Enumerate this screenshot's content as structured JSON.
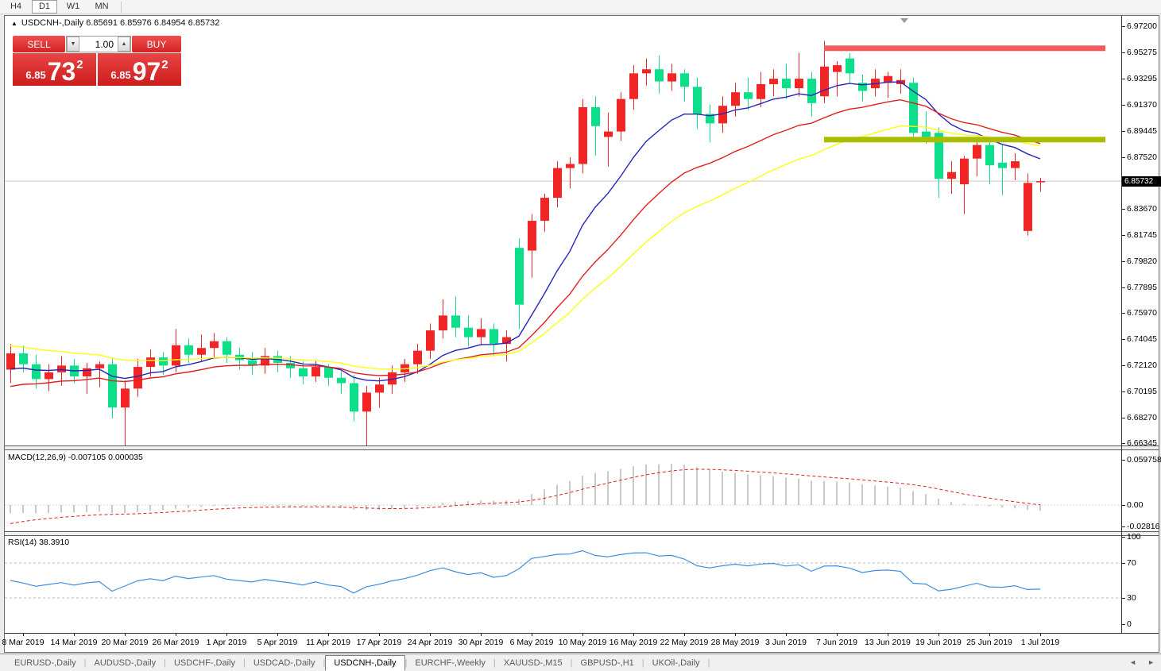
{
  "toolbar": {
    "timeframes": [
      {
        "label": "H4",
        "active": false
      },
      {
        "label": "D1",
        "active": true
      },
      {
        "label": "W1",
        "active": false
      },
      {
        "label": "MN",
        "active": false
      }
    ]
  },
  "chart_title": {
    "marker": "▲",
    "text": "USDCNH-,Daily  6.85691 6.85976 6.84954 6.85732",
    "symbol": "USDCNH-,Daily",
    "open": "6.85691",
    "high": "6.85976",
    "low": "6.84954",
    "close": "6.85732"
  },
  "trade_panel": {
    "sell_label": "SELL",
    "buy_label": "BUY",
    "volume": "1.00",
    "spin_down": "▼",
    "spin_up": "▲",
    "sell_price": {
      "prefix": "6.85",
      "big": "73",
      "sup": "2"
    },
    "buy_price": {
      "prefix": "6.85",
      "big": "97",
      "sup": "2"
    }
  },
  "chart_data": {
    "type": "candlestick",
    "symbol": "USDCNH-",
    "timeframe": "Daily",
    "price_axis": {
      "tick_values": [
        6.972,
        6.95275,
        6.93295,
        6.9137,
        6.89445,
        6.8752,
        6.8367,
        6.81745,
        6.7982,
        6.77895,
        6.7597,
        6.74045,
        6.7212,
        6.70195,
        6.6827,
        6.66345
      ],
      "current_label": "6.85732",
      "current_value": 6.85732
    },
    "x_axis": {
      "labels": [
        "8 Mar 2019",
        "14 Mar 2019",
        "20 Mar 2019",
        "26 Mar 2019",
        "1 Apr 2019",
        "5 Apr 2019",
        "11 Apr 2019",
        "17 Apr 2019",
        "24 Apr 2019",
        "30 Apr 2019",
        "6 May 2019",
        "10 May 2019",
        "16 May 2019",
        "22 May 2019",
        "28 May 2019",
        "3 Jun 2019",
        "7 Jun 2019",
        "13 Jun 2019",
        "19 Jun 2019",
        "25 Jun 2019",
        "1 Jul 2019"
      ]
    },
    "candles": [
      [
        6.718,
        6.737,
        6.708,
        6.73
      ],
      [
        6.73,
        6.736,
        6.716,
        6.722
      ],
      [
        6.722,
        6.729,
        6.704,
        6.711
      ],
      [
        6.711,
        6.722,
        6.702,
        6.716
      ],
      [
        6.716,
        6.728,
        6.706,
        6.721
      ],
      [
        6.721,
        6.726,
        6.708,
        6.713
      ],
      [
        6.713,
        6.723,
        6.7,
        6.719
      ],
      [
        6.719,
        6.724,
        6.705,
        6.722
      ],
      [
        6.722,
        6.727,
        6.682,
        6.69
      ],
      [
        6.69,
        6.71,
        6.658,
        6.704
      ],
      [
        6.704,
        6.726,
        6.698,
        6.72
      ],
      [
        6.72,
        6.733,
        6.713,
        6.727
      ],
      [
        6.727,
        6.731,
        6.714,
        6.721
      ],
      [
        6.721,
        6.748,
        6.716,
        6.736
      ],
      [
        6.736,
        6.741,
        6.723,
        6.729
      ],
      [
        6.729,
        6.744,
        6.724,
        6.734
      ],
      [
        6.734,
        6.745,
        6.727,
        6.739
      ],
      [
        6.739,
        6.742,
        6.723,
        6.729
      ],
      [
        6.729,
        6.734,
        6.718,
        6.725
      ],
      [
        6.725,
        6.731,
        6.714,
        6.721
      ],
      [
        6.721,
        6.734,
        6.715,
        6.728
      ],
      [
        6.728,
        6.732,
        6.716,
        6.723
      ],
      [
        6.723,
        6.728,
        6.712,
        6.719
      ],
      [
        6.719,
        6.724,
        6.707,
        6.713
      ],
      [
        6.713,
        6.725,
        6.709,
        6.72
      ],
      [
        6.72,
        6.722,
        6.706,
        6.712
      ],
      [
        6.712,
        6.717,
        6.7,
        6.708
      ],
      [
        6.708,
        6.714,
        6.68,
        6.687
      ],
      [
        6.687,
        6.706,
        6.659,
        6.701
      ],
      [
        6.701,
        6.712,
        6.69,
        6.707
      ],
      [
        6.707,
        6.721,
        6.7,
        6.716
      ],
      [
        6.716,
        6.726,
        6.709,
        6.722
      ],
      [
        6.722,
        6.737,
        6.715,
        6.732
      ],
      [
        6.732,
        6.752,
        6.726,
        6.747
      ],
      [
        6.747,
        6.77,
        6.741,
        6.758
      ],
      [
        6.758,
        6.772,
        6.742,
        6.749
      ],
      [
        6.749,
        6.758,
        6.735,
        6.742
      ],
      [
        6.742,
        6.756,
        6.736,
        6.748
      ],
      [
        6.748,
        6.752,
        6.728,
        6.737
      ],
      [
        6.737,
        6.747,
        6.724,
        6.742
      ],
      [
        6.808,
        6.815,
        6.748,
        6.766
      ],
      [
        6.806,
        6.833,
        6.786,
        6.828
      ],
      [
        6.828,
        6.848,
        6.82,
        6.845
      ],
      [
        6.845,
        6.872,
        6.838,
        6.867
      ],
      [
        6.867,
        6.875,
        6.852,
        6.87
      ],
      [
        6.87,
        6.918,
        6.863,
        6.912
      ],
      [
        6.912,
        6.92,
        6.876,
        6.898
      ],
      [
        6.89,
        6.908,
        6.868,
        6.894
      ],
      [
        6.894,
        6.923,
        6.887,
        6.918
      ],
      [
        6.918,
        6.943,
        6.91,
        6.937
      ],
      [
        6.937,
        6.948,
        6.928,
        6.94
      ],
      [
        6.94,
        6.95,
        6.922,
        6.931
      ],
      [
        6.931,
        6.944,
        6.924,
        6.937
      ],
      [
        6.937,
        6.94,
        6.916,
        6.927
      ],
      [
        6.927,
        6.934,
        6.896,
        6.907
      ],
      [
        6.907,
        6.914,
        6.886,
        6.9
      ],
      [
        6.9,
        6.92,
        6.893,
        6.913
      ],
      [
        6.913,
        6.93,
        6.905,
        6.923
      ],
      [
        6.923,
        6.934,
        6.91,
        6.918
      ],
      [
        6.918,
        6.938,
        6.912,
        6.929
      ],
      [
        6.929,
        6.94,
        6.92,
        6.933
      ],
      [
        6.933,
        6.944,
        6.918,
        6.926
      ],
      [
        6.926,
        6.952,
        6.92,
        6.933
      ],
      [
        6.933,
        6.938,
        6.905,
        6.915
      ],
      [
        6.92,
        6.961,
        6.915,
        6.942
      ],
      [
        6.938,
        6.946,
        6.92,
        6.943
      ],
      [
        6.948,
        6.952,
        6.93,
        6.937
      ],
      [
        6.93,
        6.936,
        6.916,
        6.924
      ],
      [
        6.926,
        6.94,
        6.92,
        6.933
      ],
      [
        6.93,
        6.938,
        6.919,
        6.935
      ],
      [
        6.929,
        6.94,
        6.922,
        6.932
      ],
      [
        6.93,
        6.934,
        6.888,
        6.893
      ],
      [
        6.894,
        6.909,
        6.885,
        6.89
      ],
      [
        6.893,
        6.897,
        6.845,
        6.859
      ],
      [
        6.859,
        6.872,
        6.848,
        6.864
      ],
      [
        6.855,
        6.876,
        6.833,
        6.874
      ],
      [
        6.874,
        6.887,
        6.861,
        6.884
      ],
      [
        6.884,
        6.89,
        6.855,
        6.869
      ],
      [
        6.871,
        6.884,
        6.847,
        6.867
      ],
      [
        6.867,
        6.878,
        6.858,
        6.872
      ],
      [
        6.8205,
        6.863,
        6.817,
        6.856
      ],
      [
        6.85691,
        6.85976,
        6.84954,
        6.85732
      ]
    ],
    "moving_averages": [
      {
        "name": "fast-ma",
        "period": 10,
        "color": "#2424bd",
        "seed": 6.716
      },
      {
        "name": "medium-ma",
        "period": 20,
        "color": "#e01f1f",
        "seed": 6.703
      },
      {
        "name": "slow-ma",
        "period": 30,
        "color": "#ffff14",
        "seed": 6.736
      }
    ],
    "levels": [
      {
        "name": "resistance",
        "price": 6.9555,
        "color": "#f15b5b"
      },
      {
        "name": "support",
        "price": 6.888,
        "color": "#a9bd00"
      }
    ],
    "colors": {
      "bull": "#f32424",
      "bear": "#0bdf89",
      "price_line": "#c6c6c6"
    },
    "indicators": {
      "macd": {
        "display": "MACD(12,26,9) -0.007105 0.000035",
        "fast": 12,
        "slow": 26,
        "signal": 9,
        "main_value": -0.007105,
        "signal_value": 3.5e-05,
        "axis_labels": [
          {
            "text": "0.059758",
            "value": 0.059758
          },
          {
            "text": "0.00",
            "value": 0
          },
          {
            "text": "-0.02816",
            "value": -0.02816
          }
        ],
        "histogram_color": "#c9c9c9",
        "signal_color": "#de1f1f"
      },
      "rsi": {
        "display": "RSI(14) 38.3910",
        "period": 14,
        "value": 38.391,
        "axis_labels": [
          {
            "text": "100",
            "value": 100
          },
          {
            "text": "70",
            "value": 70
          },
          {
            "text": "30",
            "value": 30
          },
          {
            "text": "0",
            "value": 0
          }
        ],
        "color": "#3f8ede",
        "level_values": [
          70,
          30
        ]
      }
    }
  },
  "tabs": {
    "items": [
      {
        "label": "EURUSD-,Daily",
        "active": false
      },
      {
        "label": "AUDUSD-,Daily",
        "active": false
      },
      {
        "label": "USDCHF-,Daily",
        "active": false
      },
      {
        "label": "USDCAD-,Daily",
        "active": false
      },
      {
        "label": "USDCNH-,Daily",
        "active": true
      },
      {
        "label": "EURCHF-,Weekly",
        "active": false
      },
      {
        "label": "XAUUSD-,M15",
        "active": false
      },
      {
        "label": "GBPUSD-,H1",
        "active": false
      },
      {
        "label": "UKOil-,Daily",
        "active": false
      }
    ],
    "scroll_left": "◄",
    "scroll_right": "►"
  }
}
